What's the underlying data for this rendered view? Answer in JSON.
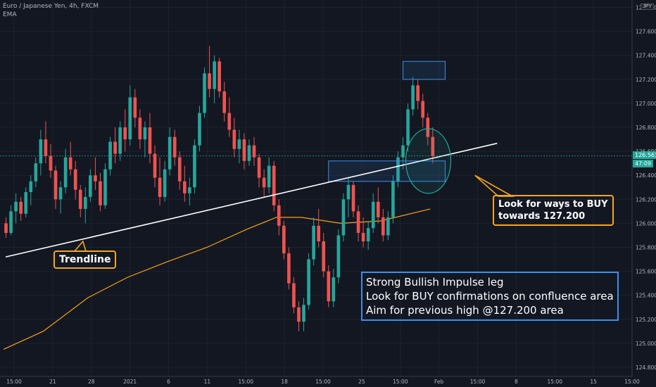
{
  "header": {
    "symbol_line": "Euro / Japanese Yen, 4h, FXCM",
    "indicator": "EMA",
    "currency_badge": "JPY"
  },
  "colors": {
    "background": "#131722",
    "grid": "#1e222d",
    "bull": "#26a69a",
    "bear": "#ef5350",
    "ema": "#f7a21b",
    "trendline": "#ffffff",
    "zone": "#3d8ee8",
    "circle": "#26a69a",
    "callout_orange": "#f5a623",
    "callout_blue": "#3d8ee8"
  },
  "price_tags": {
    "current": "126.563",
    "countdown": "47:09"
  },
  "annotations": {
    "trendline_label": "Trendline",
    "buy_note": [
      "Look for ways to BUY",
      "towards 127.200"
    ],
    "impulse_note": [
      "Strong Bullish Impulse leg",
      "Look for BUY confirmations on confluence area",
      "Aim for previous high @127.200 area"
    ]
  },
  "chart_data": {
    "type": "candlestick",
    "ylim": [
      124.6,
      127.8
    ],
    "y_ticks": [
      "124.800",
      "125.000",
      "125.200",
      "125.400",
      "125.600",
      "125.800",
      "126.000",
      "126.200",
      "126.400",
      "126.600",
      "126.800",
      "127.000",
      "127.200",
      "127.400",
      "127.600",
      "127.800"
    ],
    "x_ticks": [
      "15:00",
      "21",
      "28",
      "2021",
      "6",
      "11",
      "15:00",
      "18",
      "15:00",
      "25",
      "15:00",
      "Feb",
      "15:00",
      "8",
      "15:00",
      "15",
      "15:00"
    ],
    "series": [
      {
        "type": "candles",
        "values": [
          [
            126.0,
            126.05,
            125.88,
            125.92
          ],
          [
            125.92,
            126.15,
            125.9,
            126.1
          ],
          [
            126.1,
            126.25,
            126.0,
            126.18
          ],
          [
            126.18,
            126.22,
            126.02,
            126.08
          ],
          [
            126.08,
            126.3,
            126.05,
            126.26
          ],
          [
            126.26,
            126.4,
            126.15,
            126.35
          ],
          [
            126.35,
            126.55,
            126.3,
            126.5
          ],
          [
            126.5,
            126.78,
            126.4,
            126.7
          ],
          [
            126.7,
            126.85,
            126.5,
            126.56
          ],
          [
            126.56,
            126.66,
            126.38,
            126.44
          ],
          [
            126.44,
            126.48,
            126.12,
            126.2
          ],
          [
            126.2,
            126.35,
            126.08,
            126.3
          ],
          [
            126.3,
            126.62,
            126.25,
            126.55
          ],
          [
            126.55,
            126.68,
            126.4,
            126.45
          ],
          [
            126.45,
            126.52,
            126.2,
            126.28
          ],
          [
            126.28,
            126.32,
            126.05,
            126.12
          ],
          [
            126.12,
            126.3,
            126.0,
            126.22
          ],
          [
            126.22,
            126.45,
            126.18,
            126.4
          ],
          [
            126.4,
            126.55,
            126.28,
            126.35
          ],
          [
            126.35,
            126.42,
            126.1,
            126.15
          ],
          [
            126.15,
            126.5,
            126.12,
            126.45
          ],
          [
            126.45,
            126.72,
            126.4,
            126.68
          ],
          [
            126.68,
            126.8,
            126.5,
            126.58
          ],
          [
            126.58,
            126.85,
            126.52,
            126.8
          ],
          [
            126.8,
            126.95,
            126.6,
            126.7
          ],
          [
            126.7,
            127.15,
            126.65,
            127.05
          ],
          [
            127.05,
            127.12,
            126.8,
            126.88
          ],
          [
            126.88,
            126.95,
            126.62,
            126.7
          ],
          [
            126.7,
            126.85,
            126.55,
            126.8
          ],
          [
            126.8,
            126.92,
            126.5,
            126.58
          ],
          [
            126.58,
            126.65,
            126.3,
            126.38
          ],
          [
            126.38,
            126.55,
            126.15,
            126.22
          ],
          [
            126.22,
            126.52,
            126.18,
            126.45
          ],
          [
            126.45,
            126.8,
            126.4,
            126.72
          ],
          [
            126.72,
            126.78,
            126.48,
            126.55
          ],
          [
            126.55,
            126.6,
            126.28,
            126.35
          ],
          [
            126.35,
            126.48,
            126.18,
            126.25
          ],
          [
            126.25,
            126.38,
            126.15,
            126.3
          ],
          [
            126.3,
            126.7,
            126.25,
            126.65
          ],
          [
            126.65,
            126.98,
            126.6,
            126.92
          ],
          [
            126.92,
            127.3,
            126.88,
            127.25
          ],
          [
            127.25,
            127.48,
            127.05,
            127.12
          ],
          [
            127.12,
            127.4,
            127.0,
            127.35
          ],
          [
            127.35,
            127.38,
            127.05,
            127.1
          ],
          [
            127.1,
            127.18,
            126.85,
            126.92
          ],
          [
            126.92,
            127.05,
            126.72,
            126.78
          ],
          [
            126.78,
            126.88,
            126.55,
            126.62
          ],
          [
            126.62,
            126.78,
            126.5,
            126.7
          ],
          [
            126.7,
            126.75,
            126.45,
            126.52
          ],
          [
            126.52,
            126.7,
            126.48,
            126.65
          ],
          [
            126.65,
            126.72,
            126.48,
            126.55
          ],
          [
            126.55,
            126.58,
            126.3,
            126.38
          ],
          [
            126.38,
            126.45,
            126.22,
            126.3
          ],
          [
            126.3,
            126.55,
            126.25,
            126.48
          ],
          [
            126.48,
            126.52,
            126.1,
            126.15
          ],
          [
            126.15,
            126.2,
            125.9,
            125.98
          ],
          [
            125.98,
            126.02,
            125.7,
            125.75
          ],
          [
            125.75,
            125.8,
            125.45,
            125.5
          ],
          [
            125.5,
            125.55,
            125.25,
            125.3
          ],
          [
            125.3,
            125.35,
            125.1,
            125.18
          ],
          [
            125.18,
            125.38,
            125.1,
            125.32
          ],
          [
            125.32,
            125.75,
            125.28,
            125.7
          ],
          [
            125.7,
            126.05,
            125.65,
            125.98
          ],
          [
            125.98,
            126.12,
            125.8,
            125.85
          ],
          [
            125.85,
            125.92,
            125.55,
            125.6
          ],
          [
            125.6,
            125.65,
            125.3,
            125.35
          ],
          [
            125.35,
            125.62,
            125.3,
            125.55
          ],
          [
            125.55,
            125.95,
            125.5,
            125.9
          ],
          [
            125.9,
            126.25,
            125.85,
            126.2
          ],
          [
            126.2,
            126.38,
            126.05,
            126.32
          ],
          [
            126.32,
            126.35,
            126.05,
            126.1
          ],
          [
            126.1,
            126.15,
            125.85,
            125.92
          ],
          [
            125.92,
            126.05,
            125.8,
            125.85
          ],
          [
            125.85,
            126.02,
            125.78,
            125.96
          ],
          [
            125.96,
            126.25,
            125.92,
            126.18
          ],
          [
            126.18,
            126.3,
            126.0,
            126.05
          ],
          [
            126.05,
            126.12,
            125.85,
            125.9
          ],
          [
            125.9,
            126.1,
            125.86,
            126.05
          ],
          [
            126.05,
            126.4,
            126.0,
            126.35
          ],
          [
            126.35,
            126.6,
            126.3,
            126.55
          ],
          [
            126.55,
            126.72,
            126.45,
            126.65
          ],
          [
            126.65,
            127.0,
            126.6,
            126.95
          ],
          [
            126.95,
            127.22,
            126.9,
            127.15
          ],
          [
            127.15,
            127.2,
            126.95,
            127.02
          ],
          [
            127.02,
            127.08,
            126.8,
            126.88
          ],
          [
            126.88,
            126.92,
            126.65,
            126.72
          ],
          [
            126.72,
            126.8,
            126.5,
            126.56
          ]
        ]
      },
      {
        "type": "ema",
        "values": [
          [
            0,
            124.95
          ],
          [
            8,
            125.1
          ],
          [
            17,
            125.38
          ],
          [
            25,
            125.55
          ],
          [
            33,
            125.68
          ],
          [
            41,
            125.8
          ],
          [
            49,
            125.95
          ],
          [
            55,
            126.05
          ],
          [
            60,
            126.05
          ],
          [
            68,
            126.0
          ],
          [
            76,
            126.02
          ],
          [
            86,
            126.12
          ]
        ]
      }
    ],
    "trendline": [
      [
        0,
        125.72
      ],
      [
        86,
        126.62
      ]
    ],
    "zones": [
      {
        "x": [
          80.5,
          89
        ],
        "y": [
          127.2,
          127.35
        ]
      },
      {
        "x": [
          65.5,
          89
        ],
        "y": [
          126.35,
          126.52
        ]
      }
    ]
  }
}
